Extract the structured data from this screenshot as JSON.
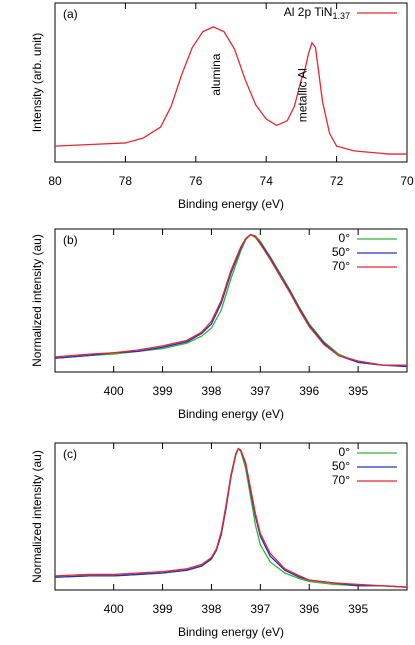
{
  "chart_data": [
    {
      "type": "line",
      "title": "(a)",
      "x_label": "Binding energy (eV)",
      "y_label": "Intensity (arb. unit)",
      "xlim": [
        80,
        70
      ],
      "xticks": [
        80,
        78,
        76,
        74,
        72,
        70
      ],
      "ylim": [
        0,
        1
      ],
      "legend": "upper right",
      "x": [
        80,
        79,
        78,
        77.5,
        77,
        76.7,
        76.4,
        76.1,
        75.8,
        75.5,
        75.2,
        74.9,
        74.6,
        74.3,
        74,
        73.7,
        73.4,
        73.2,
        73,
        72.9,
        72.8,
        72.7,
        72.6,
        72.4,
        72.2,
        72,
        71.5,
        71,
        70.5,
        70
      ],
      "series": [
        {
          "name": "Al 2p TiN",
          "name_subscript": "1.37",
          "color": "#e8262e",
          "values": [
            0.1,
            0.11,
            0.12,
            0.15,
            0.22,
            0.35,
            0.55,
            0.72,
            0.82,
            0.85,
            0.82,
            0.71,
            0.52,
            0.36,
            0.27,
            0.23,
            0.26,
            0.35,
            0.52,
            0.58,
            0.68,
            0.75,
            0.72,
            0.38,
            0.18,
            0.1,
            0.07,
            0.06,
            0.05,
            0.05
          ]
        }
      ],
      "annotations": [
        {
          "text": "alumina",
          "x": 75.4,
          "y": 0.55
        },
        {
          "text": "metallic Al",
          "x": 72.95,
          "y": 0.42
        }
      ]
    },
    {
      "type": "line",
      "title": "(b)",
      "x_label": "Binding energy (eV)",
      "y_label": "Normalized intensity (au)",
      "xlim": [
        401.2,
        394.0
      ],
      "xticks": [
        400,
        399,
        398,
        397,
        396,
        395
      ],
      "ylim": [
        0,
        1.04
      ],
      "legend": "upper right",
      "x": [
        401.2,
        400.5,
        400,
        399.5,
        399,
        398.5,
        398.2,
        398,
        397.8,
        397.6,
        397.4,
        397.3,
        397.2,
        397.1,
        397,
        396.8,
        396.6,
        396.4,
        396.2,
        396,
        395.7,
        395.4,
        395,
        394.5,
        394.0
      ],
      "series": [
        {
          "name": "0°",
          "color": "#2db82d",
          "values": [
            0.1,
            0.12,
            0.13,
            0.15,
            0.17,
            0.21,
            0.26,
            0.32,
            0.45,
            0.68,
            0.88,
            0.96,
            1.0,
            0.99,
            0.95,
            0.84,
            0.72,
            0.6,
            0.47,
            0.35,
            0.22,
            0.13,
            0.07,
            0.05,
            0.04
          ]
        },
        {
          "name": "50°",
          "color": "#2030c8",
          "values": [
            0.1,
            0.12,
            0.14,
            0.15,
            0.18,
            0.22,
            0.28,
            0.35,
            0.5,
            0.72,
            0.9,
            0.97,
            1.0,
            0.98,
            0.94,
            0.83,
            0.71,
            0.59,
            0.46,
            0.34,
            0.21,
            0.12,
            0.07,
            0.05,
            0.04
          ]
        },
        {
          "name": "70°",
          "color": "#e8262e",
          "values": [
            0.11,
            0.13,
            0.14,
            0.16,
            0.19,
            0.23,
            0.29,
            0.37,
            0.52,
            0.74,
            0.91,
            0.97,
            1.0,
            0.98,
            0.93,
            0.82,
            0.7,
            0.58,
            0.45,
            0.33,
            0.2,
            0.12,
            0.08,
            0.05,
            0.05
          ]
        }
      ]
    },
    {
      "type": "line",
      "title": "(c)",
      "x_label": "Binding energy (eV)",
      "y_label": "Normalized intensity (au)",
      "xlim": [
        401.2,
        394.0
      ],
      "xticks": [
        400,
        399,
        398,
        397,
        396,
        395
      ],
      "ylim": [
        0,
        1.04
      ],
      "legend": "upper right",
      "x": [
        401.2,
        400.5,
        400,
        399.5,
        399,
        398.5,
        398.2,
        398,
        397.9,
        397.8,
        397.7,
        397.6,
        397.5,
        397.45,
        397.4,
        397.3,
        397.2,
        397.1,
        397,
        396.8,
        396.5,
        396.2,
        396,
        395.5,
        395,
        394.5,
        394.0
      ],
      "series": [
        {
          "name": "0°",
          "color": "#2db82d",
          "values": [
            0.09,
            0.1,
            0.1,
            0.11,
            0.12,
            0.14,
            0.17,
            0.22,
            0.28,
            0.4,
            0.6,
            0.82,
            0.97,
            1.0,
            0.98,
            0.86,
            0.66,
            0.46,
            0.32,
            0.2,
            0.12,
            0.08,
            0.06,
            0.04,
            0.03,
            0.03,
            0.02
          ]
        },
        {
          "name": "50°",
          "color": "#2030c8",
          "values": [
            0.09,
            0.1,
            0.1,
            0.11,
            0.12,
            0.14,
            0.17,
            0.22,
            0.28,
            0.39,
            0.58,
            0.8,
            0.96,
            1.0,
            0.99,
            0.89,
            0.7,
            0.52,
            0.38,
            0.24,
            0.14,
            0.09,
            0.07,
            0.05,
            0.03,
            0.03,
            0.02
          ]
        },
        {
          "name": "70°",
          "color": "#e8262e",
          "values": [
            0.1,
            0.11,
            0.11,
            0.12,
            0.13,
            0.15,
            0.18,
            0.23,
            0.29,
            0.41,
            0.6,
            0.81,
            0.96,
            1.0,
            0.99,
            0.9,
            0.72,
            0.54,
            0.4,
            0.26,
            0.15,
            0.1,
            0.07,
            0.05,
            0.04,
            0.03,
            0.02
          ]
        }
      ]
    }
  ]
}
